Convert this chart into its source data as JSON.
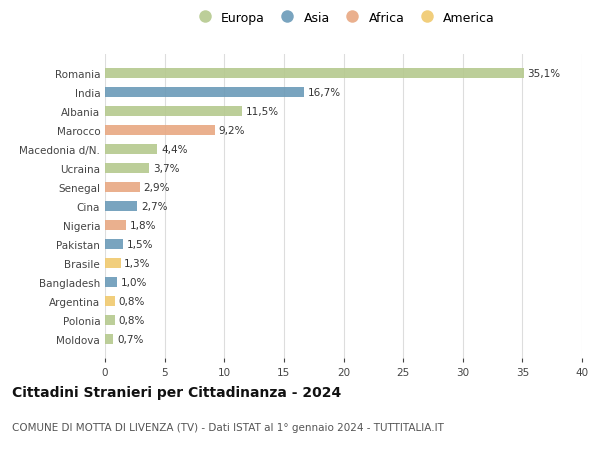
{
  "countries": [
    "Romania",
    "India",
    "Albania",
    "Marocco",
    "Macedonia d/N.",
    "Ucraina",
    "Senegal",
    "Cina",
    "Nigeria",
    "Pakistan",
    "Brasile",
    "Bangladesh",
    "Argentina",
    "Polonia",
    "Moldova"
  ],
  "values": [
    35.1,
    16.7,
    11.5,
    9.2,
    4.4,
    3.7,
    2.9,
    2.7,
    1.8,
    1.5,
    1.3,
    1.0,
    0.8,
    0.8,
    0.7
  ],
  "labels": [
    "35,1%",
    "16,7%",
    "11,5%",
    "9,2%",
    "4,4%",
    "3,7%",
    "2,9%",
    "2,7%",
    "1,8%",
    "1,5%",
    "1,3%",
    "1,0%",
    "0,8%",
    "0,8%",
    "0,7%"
  ],
  "continents": [
    "Europa",
    "Asia",
    "Europa",
    "Africa",
    "Europa",
    "Europa",
    "Africa",
    "Asia",
    "Africa",
    "Asia",
    "America",
    "Asia",
    "America",
    "Europa",
    "Europa"
  ],
  "continent_colors": {
    "Europa": "#b5c98e",
    "Asia": "#6b9ab8",
    "Africa": "#e8a882",
    "America": "#f0c96e"
  },
  "legend_order": [
    "Europa",
    "Asia",
    "Africa",
    "America"
  ],
  "xlim": [
    0,
    40
  ],
  "xticks": [
    0,
    5,
    10,
    15,
    20,
    25,
    30,
    35,
    40
  ],
  "title": "Cittadini Stranieri per Cittadinanza - 2024",
  "subtitle": "COMUNE DI MOTTA DI LIVENZA (TV) - Dati ISTAT al 1° gennaio 2024 - TUTTITALIA.IT",
  "background_color": "#ffffff",
  "grid_color": "#dddddd",
  "bar_height": 0.55,
  "label_fontsize": 7.5,
  "tick_fontsize": 7.5,
  "title_fontsize": 10,
  "subtitle_fontsize": 7.5
}
